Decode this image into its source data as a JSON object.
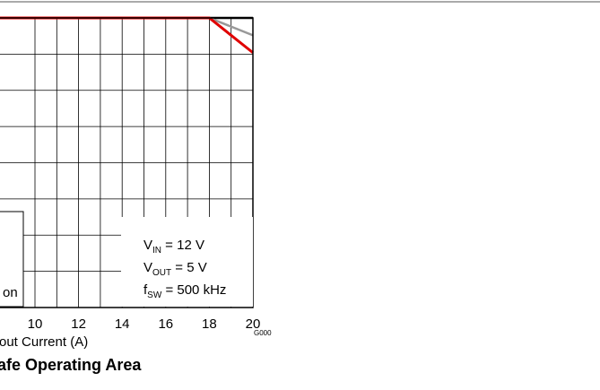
{
  "chart_data": {
    "type": "line",
    "caption": "afe Operating Area",
    "xlabel": "out Current (A)",
    "figure_code": "G000",
    "x_ticks": [
      10,
      12,
      14,
      16,
      18,
      20
    ],
    "x_tick_labels": [
      "10",
      "12",
      "14",
      "16",
      "18",
      "20"
    ],
    "xlim_visible": [
      10,
      20
    ],
    "grid": true,
    "legend_partial_text": "on",
    "conditions": [
      {
        "name": "V",
        "sub": "IN",
        "value": " = 12 V"
      },
      {
        "name": "V",
        "sub": "OUT",
        "value": " = 5 V"
      },
      {
        "name": "f",
        "sub": "SW",
        "value": " = 500 kHz"
      }
    ],
    "series": [
      {
        "color": "#000000",
        "points": [
          [
            7.3,
            100
          ],
          [
            18,
            100
          ],
          [
            20,
            100
          ]
        ]
      },
      {
        "color": "#999999",
        "points": [
          [
            7.3,
            100
          ],
          [
            18,
            100
          ],
          [
            20,
            94
          ]
        ]
      },
      {
        "color": "#e00000",
        "points": [
          [
            7.3,
            100
          ],
          [
            18,
            100
          ],
          [
            20,
            88
          ]
        ]
      }
    ],
    "ylim": [
      0,
      100
    ]
  }
}
